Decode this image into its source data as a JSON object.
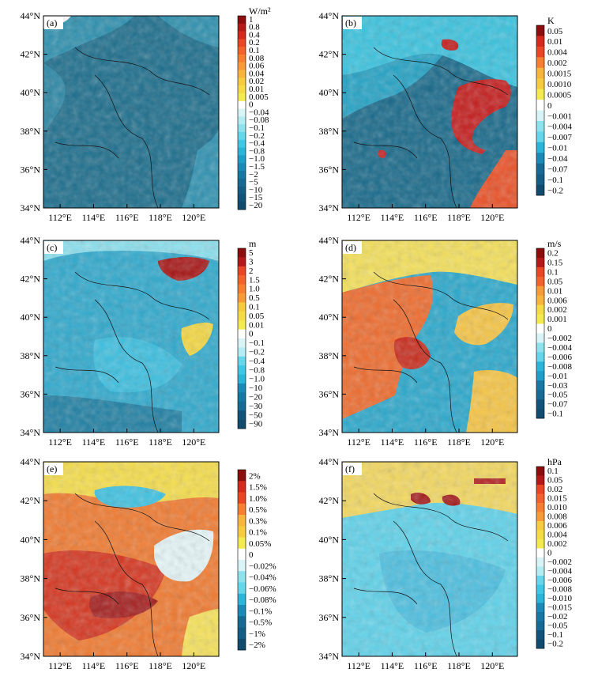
{
  "chart_data": [
    {
      "type": "heatmap",
      "panel_label": "(a)",
      "unit": "W/m²",
      "ylabels": [
        "44°N",
        "42°N",
        "40°N",
        "38°N",
        "36°N",
        "34°N"
      ],
      "xlabels": [
        "112°E",
        "114°E",
        "116°E",
        "118°E",
        "120°E"
      ],
      "colorbar_labels": [
        "1",
        "0.8",
        "0.4",
        "0.2",
        "0.1",
        "0.08",
        "0.06",
        "0.04",
        "0.02",
        "0.01",
        "0.005",
        "0",
        "−0.04",
        "−0.08",
        "−0.1",
        "−0.2",
        "−0.4",
        "−0.8",
        "−1.0",
        "−1.5",
        "−2",
        "−5",
        "−10",
        "−15",
        "−20"
      ],
      "dominant_level": "−10 to −20"
    },
    {
      "type": "heatmap",
      "panel_label": "(b)",
      "unit": "K",
      "ylabels": [
        "44°N",
        "42°N",
        "40°N",
        "38°N",
        "36°N",
        "34°N"
      ],
      "xlabels": [
        "112°E",
        "114°E",
        "116°E",
        "118°E",
        "120°E"
      ],
      "colorbar_labels": [
        "0.05",
        "0.01",
        "0.004",
        "0.002",
        "0.0015",
        "0.0010",
        "0.0005",
        "0",
        "−0.001",
        "−0.004",
        "−0.007",
        "−0.01",
        "−0.04",
        "−0.07",
        "−0.1",
        "−0.2"
      ]
    },
    {
      "type": "heatmap",
      "panel_label": "(c)",
      "unit": "m",
      "ylabels": [
        "44°N",
        "42°N",
        "40°N",
        "38°N",
        "36°N",
        "34°N"
      ],
      "xlabels": [
        "112°E",
        "114°E",
        "116°E",
        "118°E",
        "120°E"
      ],
      "colorbar_labels": [
        "5",
        "3",
        "2",
        "1.5",
        "1.0",
        "0.5",
        "0.1",
        "0.05",
        "0.01",
        "0",
        "−0.1",
        "−0.2",
        "−0.4",
        "−0.8",
        "−1.0",
        "−10",
        "−20",
        "−30",
        "−50",
        "−90"
      ]
    },
    {
      "type": "heatmap",
      "panel_label": "(d)",
      "unit": "m/s",
      "ylabels": [
        "44°N",
        "42°N",
        "40°N",
        "38°N",
        "36°N",
        "34°N"
      ],
      "xlabels": [
        "112°E",
        "114°E",
        "116°E",
        "118°E",
        "120°E"
      ],
      "colorbar_labels": [
        "0.2",
        "0.15",
        "0.1",
        "0.05",
        "0.01",
        "0.006",
        "0.002",
        "0.001",
        "0",
        "−0.002",
        "−0.004",
        "−0.006",
        "−0.008",
        "−0.01",
        "−0.03",
        "−0.05",
        "−0.07",
        "−0.1"
      ]
    },
    {
      "type": "heatmap",
      "panel_label": "(e)",
      "unit": "",
      "ylabels": [
        "44°N",
        "42°N",
        "40°N",
        "38°N",
        "36°N",
        "34°N"
      ],
      "xlabels": [
        "112°E",
        "114°E",
        "116°E",
        "118°E",
        "120°E"
      ],
      "colorbar_labels": [
        "2%",
        "1.5%",
        "1.0%",
        "0.5%",
        "0.3%",
        "0.1%",
        "0.05%",
        "0",
        "−0.02%",
        "−0.04%",
        "−0.06%",
        "−0.08%",
        "−0.1%",
        "−0.5%",
        "−1%",
        "−2%"
      ]
    },
    {
      "type": "heatmap",
      "panel_label": "(f)",
      "unit": "hPa",
      "ylabels": [
        "44°N",
        "42°N",
        "40°N",
        "38°N",
        "36°N",
        "34°N"
      ],
      "xlabels": [
        "112°E",
        "114°E",
        "116°E",
        "118°E",
        "120°E"
      ],
      "colorbar_labels": [
        "0.1",
        "0.05",
        "0.02",
        "0.015",
        "0.010",
        "0.008",
        "0.006",
        "0.004",
        "0.002",
        "0",
        "−0.002",
        "−0.004",
        "−0.006",
        "−0.008",
        "−0.010",
        "−0.015",
        "−0.02",
        "−0.05",
        "−0.1",
        "−0.2"
      ]
    }
  ],
  "colors": {
    "scale": [
      "#8b0d0d",
      "#b31919",
      "#d42a1d",
      "#e94625",
      "#f2622d",
      "#f77f31",
      "#f79b38",
      "#f7b53d",
      "#f6cb40",
      "#f5dc47",
      "#f3ea4f",
      "#ffffff",
      "#d9f4f6",
      "#b3ecf2",
      "#8de2ee",
      "#66d6ea",
      "#3ec8e6",
      "#2ab5d9",
      "#1e9ec8",
      "#1b8ab6",
      "#1877a3",
      "#166a93",
      "#145e86",
      "#125479",
      "#114b6d"
    ]
  }
}
